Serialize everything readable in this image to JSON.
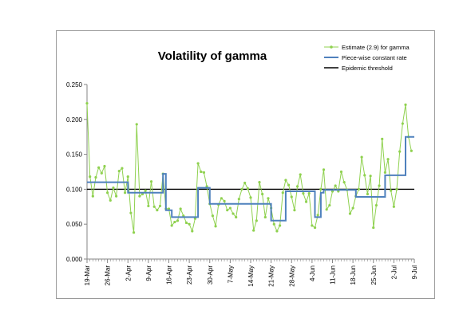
{
  "chart_data": {
    "type": "line",
    "title": "Volatility of gamma",
    "xlabel": "",
    "ylabel": "",
    "ylim": [
      0,
      0.25
    ],
    "yticks": [
      "0.000",
      "0.050",
      "0.100",
      "0.150",
      "0.200",
      "0.250"
    ],
    "ytick_values": [
      0,
      0.05,
      0.1,
      0.15,
      0.2,
      0.25
    ],
    "x_start": "19-Mar",
    "x_end": "9-Jul",
    "x_days": 112,
    "xticks": [
      "19-Mar",
      "26-Mar",
      "2-Apr",
      "9-Apr",
      "16-Apr",
      "23-Apr",
      "30-Apr",
      "7-May",
      "14-May",
      "21-May",
      "28-May",
      "4-Jun",
      "11-Jun",
      "18-Jun",
      "25-Jun",
      "2-Jul",
      "9-Jul"
    ],
    "xtick_days": [
      0,
      7,
      14,
      21,
      28,
      35,
      42,
      49,
      56,
      63,
      70,
      77,
      84,
      91,
      98,
      105,
      112
    ],
    "legend_position": "top-right",
    "grid": false,
    "series": [
      {
        "name": "Estimate (2.9) for gamma",
        "color": "#8fd14f",
        "marker": "dot",
        "x": [
          0,
          1,
          2,
          3,
          4,
          5,
          6,
          7,
          8,
          9,
          10,
          11,
          12,
          13,
          14,
          15,
          16,
          17,
          18,
          19,
          20,
          21,
          22,
          23,
          24,
          25,
          26,
          27,
          28,
          29,
          30,
          31,
          32,
          33,
          34,
          35,
          36,
          37,
          38,
          39,
          40,
          41,
          42,
          43,
          44,
          45,
          46,
          47,
          48,
          49,
          50,
          51,
          52,
          53,
          54,
          55,
          56,
          57,
          58,
          59,
          60,
          61,
          62,
          63,
          64,
          65,
          66,
          67,
          68,
          69,
          70,
          71,
          72,
          73,
          74,
          75,
          76,
          77,
          78,
          79,
          80,
          81,
          82,
          83,
          84,
          85,
          86,
          87,
          88,
          89,
          90,
          91,
          92,
          93,
          94,
          95,
          96,
          97,
          98,
          99,
          100,
          101,
          102,
          103,
          104,
          105,
          106,
          107,
          108,
          109,
          110,
          111
        ],
        "values": [
          0.223,
          0.118,
          0.09,
          0.117,
          0.131,
          0.123,
          0.133,
          0.095,
          0.084,
          0.102,
          0.09,
          0.126,
          0.13,
          0.095,
          0.118,
          0.066,
          0.038,
          0.193,
          0.09,
          0.093,
          0.098,
          0.076,
          0.111,
          0.075,
          0.07,
          0.076,
          0.122,
          0.072,
          0.072,
          0.048,
          0.053,
          0.055,
          0.072,
          0.062,
          0.052,
          0.05,
          0.04,
          0.058,
          0.137,
          0.125,
          0.124,
          0.104,
          0.079,
          0.062,
          0.047,
          0.078,
          0.087,
          0.083,
          0.07,
          0.073,
          0.065,
          0.06,
          0.086,
          0.1,
          0.109,
          0.101,
          0.088,
          0.041,
          0.055,
          0.11,
          0.093,
          0.06,
          0.087,
          0.073,
          0.05,
          0.04,
          0.048,
          0.095,
          0.113,
          0.106,
          0.089,
          0.07,
          0.104,
          0.121,
          0.094,
          0.082,
          0.094,
          0.048,
          0.045,
          0.063,
          0.1,
          0.128,
          0.071,
          0.077,
          0.097,
          0.105,
          0.097,
          0.125,
          0.11,
          0.099,
          0.065,
          0.073,
          0.09,
          0.1,
          0.146,
          0.12,
          0.093,
          0.119,
          0.045,
          0.077,
          0.105,
          0.172,
          0.124,
          0.143,
          0.098,
          0.075,
          0.1,
          0.154,
          0.194,
          0.221,
          0.175,
          0.155
        ]
      },
      {
        "name": "Piece-wise constant rate",
        "color": "#4f81bd",
        "step": true,
        "x": [
          0,
          14,
          14,
          26,
          26,
          27,
          27,
          29,
          29,
          38,
          38,
          42,
          42,
          63,
          63,
          68,
          68,
          78,
          78,
          80,
          80,
          81,
          81,
          92,
          92,
          102,
          102,
          109,
          109,
          112
        ],
        "values": [
          0.11,
          0.11,
          0.095,
          0.095,
          0.122,
          0.122,
          0.07,
          0.07,
          0.06,
          0.06,
          0.102,
          0.102,
          0.079,
          0.079,
          0.055,
          0.055,
          0.097,
          0.097,
          0.06,
          0.06,
          0.095,
          0.095,
          0.099,
          0.099,
          0.089,
          0.089,
          0.12,
          0.12,
          0.175,
          0.175
        ]
      },
      {
        "name": "Epidemic threshold",
        "color": "#000000",
        "x": [
          0,
          112
        ],
        "values": [
          0.1,
          0.1
        ]
      }
    ]
  }
}
